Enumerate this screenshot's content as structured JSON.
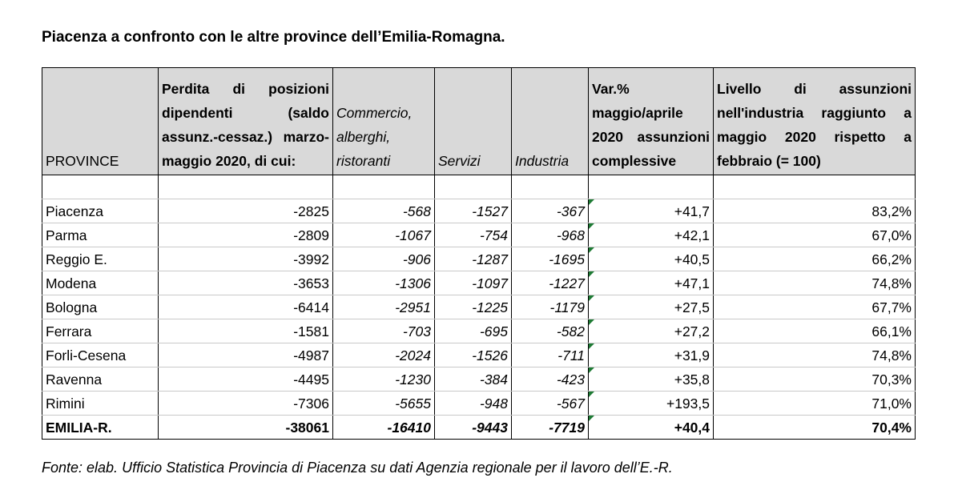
{
  "title": "Piacenza a confronto con le altre province dell’Emilia-Romagna.",
  "source": "Fonte: elab. Ufficio Statistica Provincia di Piacenza su dati Agenzia regionale per il lavoro dell’E.-R.",
  "headers": {
    "province": "PROVINCE",
    "perdita": "Perdita di posizioni dipendenti (saldo assunz.-cessaz.) marzo-maggio 2020, di cui:",
    "commercio": "Commercio, alberghi, ristoranti",
    "servizi": "Servizi",
    "industria": "Industria",
    "var": "Var.% maggio/aprile 2020 assunzioni complessive",
    "livello": "Livello di assunzioni nell'industria raggiunto a maggio 2020 rispetto a febbraio (= 100)"
  },
  "rows": [
    {
      "name": "Piacenza",
      "perdita": "-2825",
      "commercio": "-568",
      "servizi": "-1527",
      "industria": "-367",
      "var": "+41,7",
      "livello": "83,2%"
    },
    {
      "name": "Parma",
      "perdita": "-2809",
      "commercio": "-1067",
      "servizi": "-754",
      "industria": "-968",
      "var": "+42,1",
      "livello": "67,0%"
    },
    {
      "name": "Reggio E.",
      "perdita": "-3992",
      "commercio": "-906",
      "servizi": "-1287",
      "industria": "-1695",
      "var": "+40,5",
      "livello": "66,2%"
    },
    {
      "name": "Modena",
      "perdita": "-3653",
      "commercio": "-1306",
      "servizi": "-1097",
      "industria": "-1227",
      "var": "+47,1",
      "livello": "74,8%"
    },
    {
      "name": "Bologna",
      "perdita": "-6414",
      "commercio": "-2951",
      "servizi": "-1225",
      "industria": "-1179",
      "var": "+27,5",
      "livello": "67,7%"
    },
    {
      "name": "Ferrara",
      "perdita": "-1581",
      "commercio": "-703",
      "servizi": "-695",
      "industria": "-582",
      "var": "+27,2",
      "livello": "66,1%"
    },
    {
      "name": "Forli-Cesena",
      "perdita": "-4987",
      "commercio": "-2024",
      "servizi": "-1526",
      "industria": "-711",
      "var": "+31,9",
      "livello": "74,8%"
    },
    {
      "name": "Ravenna",
      "perdita": "-4495",
      "commercio": "-1230",
      "servizi": "-384",
      "industria": "-423",
      "var": "+35,8",
      "livello": "70,3%"
    },
    {
      "name": "Rimini",
      "perdita": "-7306",
      "commercio": "-5655",
      "servizi": "-948",
      "industria": "-567",
      "var": "+193,5",
      "livello": "71,0%"
    }
  ],
  "total": {
    "name": "EMILIA-R.",
    "perdita": "-38061",
    "commercio": "-16410",
    "servizi": "-9443",
    "industria": "-7719",
    "var": "+40,4",
    "livello": "70,4%"
  }
}
